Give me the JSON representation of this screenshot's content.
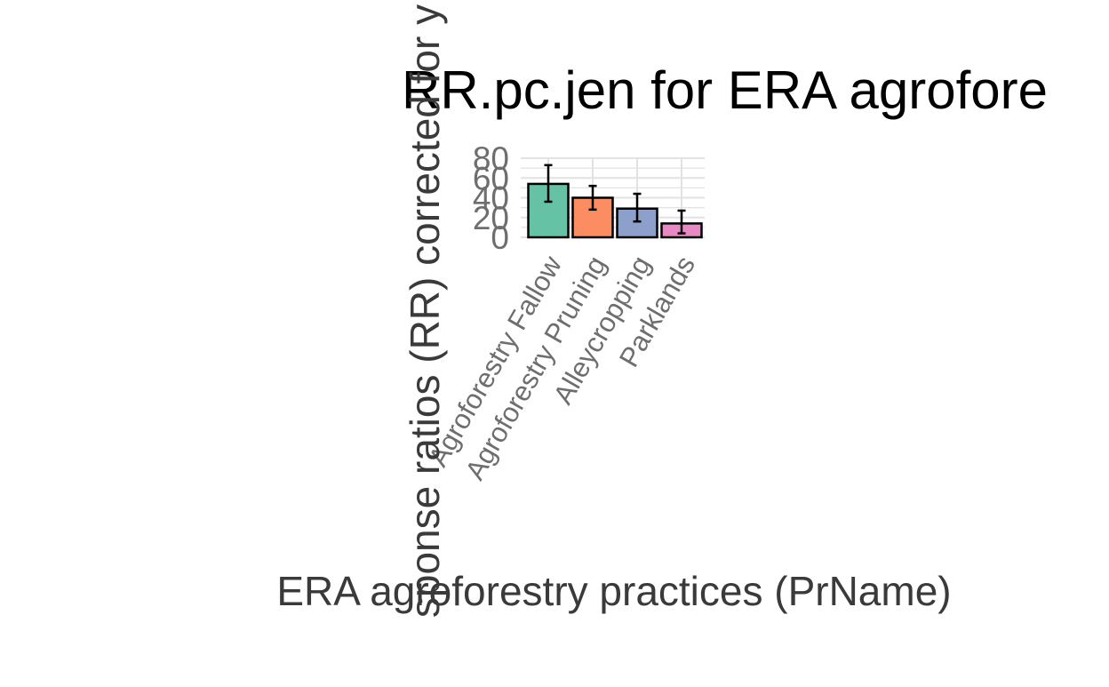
{
  "chart_data": {
    "type": "bar",
    "title": "RR.pc.jen for ERA agrofore",
    "xlabel": "ERA agroforestry practices (PrName)",
    "ylabel": "sponse ratios (RR) corrected for y",
    "categories": [
      "Agroforestry Fallow",
      "Agroforestry Pruning",
      "Alleycropping",
      "Parklands"
    ],
    "values": [
      54,
      40,
      29,
      14
    ],
    "error_low": [
      36,
      28,
      16,
      4
    ],
    "error_high": [
      73,
      52,
      44,
      27
    ],
    "colors": [
      "#66c2a5",
      "#fc8d62",
      "#8da0cb",
      "#e78ac3"
    ],
    "yticks": [
      0,
      20,
      40,
      60,
      80
    ],
    "ylim": [
      0,
      80
    ],
    "grid": true,
    "legend": "none"
  }
}
